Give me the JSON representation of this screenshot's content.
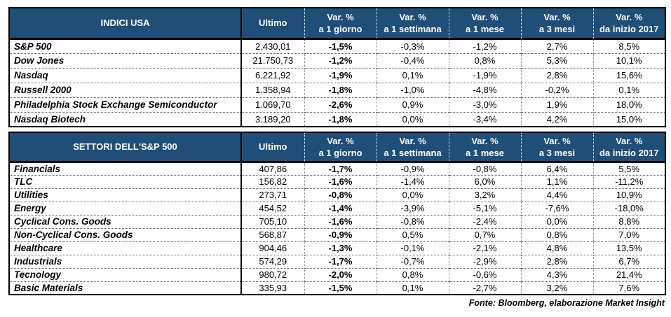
{
  "columns": [
    {
      "line1": "Ultimo",
      "line2": ""
    },
    {
      "line1": "Var. %",
      "line2": "a 1 giorno"
    },
    {
      "line1": "Var. %",
      "line2": "a 1 settimana"
    },
    {
      "line1": "Var. %",
      "line2": "a 1 mese"
    },
    {
      "line1": "Var. %",
      "line2": "a 3 mesi"
    },
    {
      "line1": "Var. %",
      "line2": "da inizio 2017"
    }
  ],
  "tables": [
    {
      "title": "INDICI USA",
      "rows": [
        {
          "name": "S&P 500",
          "ultimo": "2.430,01",
          "d1": "-1,5%",
          "w1": "-0,3%",
          "m1": "-1,2%",
          "m3": "2,7%",
          "ytd": "8,5%"
        },
        {
          "name": "Dow Jones",
          "ultimo": "21.750,73",
          "d1": "-1,2%",
          "w1": "-0,4%",
          "m1": "0,8%",
          "m3": "5,3%",
          "ytd": "10,1%"
        },
        {
          "name": "Nasdaq",
          "ultimo": "6.221,92",
          "d1": "-1,9%",
          "w1": "0,1%",
          "m1": "-1,9%",
          "m3": "2,8%",
          "ytd": "15,6%"
        },
        {
          "name": "Russell 2000",
          "ultimo": "1.358,94",
          "d1": "-1,8%",
          "w1": "-1,0%",
          "m1": "-4,8%",
          "m3": "-0,2%",
          "ytd": "0,1%"
        },
        {
          "name": "Philadelphia Stock Exchange Semiconductor",
          "ultimo": "1.069,70",
          "d1": "-2,6%",
          "w1": "0,9%",
          "m1": "-3,0%",
          "m3": "1,9%",
          "ytd": "18,0%"
        },
        {
          "name": "Nasdaq Biotech",
          "ultimo": "3.189,20",
          "d1": "-1,8%",
          "w1": "0,0%",
          "m1": "-3,4%",
          "m3": "4,2%",
          "ytd": "15,0%"
        }
      ]
    },
    {
      "title": "SETTORI DELL'S&P 500",
      "rows": [
        {
          "name": "Financials",
          "ultimo": "407,86",
          "d1": "-1,7%",
          "w1": "-0,9%",
          "m1": "-0,8%",
          "m3": "6,4%",
          "ytd": "5,5%"
        },
        {
          "name": "TLC",
          "ultimo": "156,82",
          "d1": "-1,6%",
          "w1": "-1,4%",
          "m1": "6,0%",
          "m3": "1,1%",
          "ytd": "-11,2%"
        },
        {
          "name": "Utilities",
          "ultimo": "273,71",
          "d1": "-0,8%",
          "w1": "0,0%",
          "m1": "3,2%",
          "m3": "4,4%",
          "ytd": "10,9%"
        },
        {
          "name": "Energy",
          "ultimo": "454,52",
          "d1": "-1,4%",
          "w1": "-3,9%",
          "m1": "-5,1%",
          "m3": "-7,6%",
          "ytd": "-18,0%"
        },
        {
          "name": "Cyclical Cons. Goods",
          "ultimo": "705,10",
          "d1": "-1,6%",
          "w1": "-0,8%",
          "m1": "-2,4%",
          "m3": "0,0%",
          "ytd": "8,8%"
        },
        {
          "name": "Non-Cyclical Cons. Goods",
          "ultimo": "568,87",
          "d1": "-0,9%",
          "w1": "0,5%",
          "m1": "0,7%",
          "m3": "0,8%",
          "ytd": "7,0%"
        },
        {
          "name": "Healthcare",
          "ultimo": "904,46",
          "d1": "-1,3%",
          "w1": "-0,1%",
          "m1": "-2,1%",
          "m3": "4,8%",
          "ytd": "13,5%"
        },
        {
          "name": "Industrials",
          "ultimo": "574,29",
          "d1": "-1,7%",
          "w1": "-0,7%",
          "m1": "-2,9%",
          "m3": "2,8%",
          "ytd": "6,7%"
        },
        {
          "name": "Tecnology",
          "ultimo": "980,72",
          "d1": "-2,0%",
          "w1": "0,8%",
          "m1": "-0,6%",
          "m3": "4,3%",
          "ytd": "21,4%"
        },
        {
          "name": "Basic Materials",
          "ultimo": "335,93",
          "d1": "-1,5%",
          "w1": "0,1%",
          "m1": "-2,7%",
          "m3": "3,2%",
          "ytd": "7,6%"
        }
      ]
    }
  ],
  "footer": {
    "source_note": "Fonte: Bloomberg, elaborazione Market Insight"
  },
  "colors": {
    "header_bg": "#1F4E79",
    "header_text": "#ffffff",
    "border": "#000000"
  }
}
